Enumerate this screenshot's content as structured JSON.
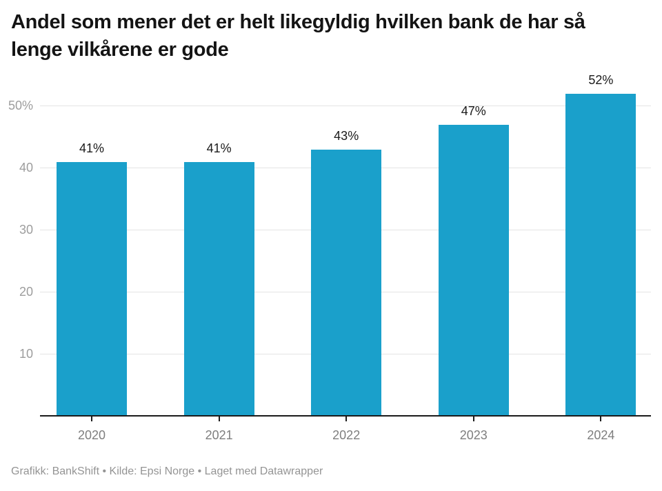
{
  "header": {
    "title": "Andel som mener det er helt likegyldig hvilken bank de har så lenge vilkårene er gode"
  },
  "chart_data": {
    "type": "bar",
    "title": "Andel som mener det er helt likegyldig hvilken bank de har så lenge vilkårene er gode",
    "categories": [
      "2020",
      "2021",
      "2022",
      "2023",
      "2024"
    ],
    "values": [
      41,
      41,
      43,
      47,
      52
    ],
    "value_labels": [
      "41%",
      "41%",
      "43%",
      "47%",
      "52%"
    ],
    "y_ticks": [
      {
        "value": 10,
        "label": "10"
      },
      {
        "value": 20,
        "label": "20"
      },
      {
        "value": 30,
        "label": "30"
      },
      {
        "value": 40,
        "label": "40"
      },
      {
        "value": 50,
        "label": "50%"
      }
    ],
    "ylim": [
      0,
      55
    ],
    "xlabel": "",
    "ylabel": "",
    "grid": "horizontal",
    "legend": "none",
    "colors": {
      "bar": "#1aa0cb",
      "gridline": "#e4e4e4",
      "axis": "#1a1a1a",
      "value_label": "#1a1a1a",
      "y_tick_label": "#9d9d9d",
      "x_tick_label": "#7e7e7e"
    }
  },
  "footer": {
    "text": "Grafikk: BankShift • Kilde: Epsi Norge • Laget med Datawrapper"
  }
}
